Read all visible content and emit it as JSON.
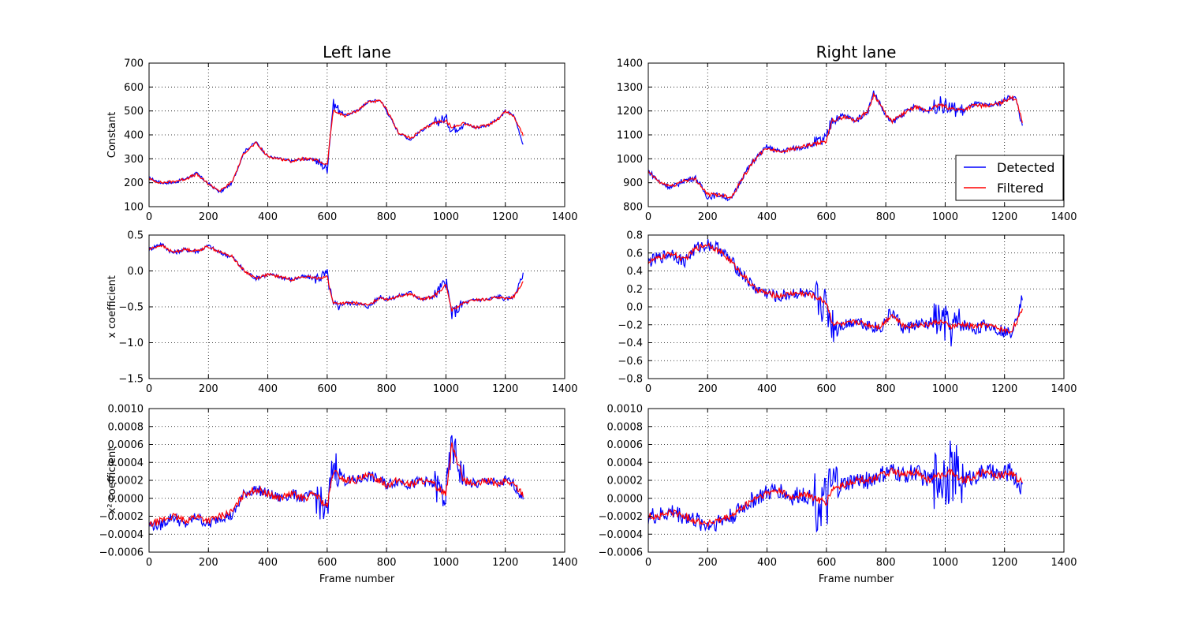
{
  "colors": {
    "detected": "#0000ff",
    "filtered": "#ff0000",
    "axes": "#000000",
    "grid": "#000000"
  },
  "legend": {
    "placement": "right",
    "items": [
      {
        "label": "Detected",
        "color": "#0000ff"
      },
      {
        "label": "Filtered",
        "color": "#ff0000"
      }
    ]
  },
  "chart_data": [
    {
      "id": "left-constant",
      "type": "line",
      "column": 0,
      "row": 0,
      "title": "Left lane",
      "xlabel": "",
      "ylabel": "Constant",
      "xlim": [
        0,
        1400
      ],
      "ylim": [
        100,
        700
      ],
      "xticks": [
        "0",
        "200",
        "400",
        "600",
        "800",
        "1000",
        "1200",
        "1400"
      ],
      "yticks": [
        "100",
        "200",
        "300",
        "400",
        "500",
        "600",
        "700"
      ],
      "grid": true,
      "legend": false,
      "noise": [
        6,
        6,
        10
      ],
      "x": [
        0,
        40,
        80,
        120,
        160,
        200,
        240,
        280,
        320,
        360,
        400,
        440,
        480,
        520,
        560,
        600,
        620,
        660,
        700,
        740,
        780,
        800,
        840,
        880,
        920,
        960,
        1000,
        1020,
        1060,
        1100,
        1140,
        1180,
        1200,
        1230,
        1260
      ],
      "series": [
        {
          "name": "Detected",
          "values": [
            220,
            200,
            200,
            215,
            240,
            195,
            160,
            200,
            330,
            370,
            310,
            300,
            290,
            300,
            295,
            260,
            530,
            480,
            500,
            540,
            545,
            500,
            410,
            380,
            420,
            450,
            470,
            420,
            450,
            430,
            440,
            470,
            500,
            480,
            360
          ]
        },
        {
          "name": "Filtered",
          "values": [
            215,
            200,
            205,
            215,
            235,
            195,
            165,
            205,
            325,
            365,
            310,
            300,
            290,
            300,
            295,
            275,
            500,
            480,
            500,
            540,
            540,
            505,
            410,
            385,
            420,
            450,
            460,
            430,
            450,
            430,
            440,
            470,
            500,
            475,
            400
          ]
        }
      ]
    },
    {
      "id": "left-x",
      "type": "line",
      "column": 0,
      "row": 1,
      "title": "",
      "xlabel": "",
      "ylabel": "x coefficient",
      "xlim": [
        0,
        1400
      ],
      "ylim": [
        -1.5,
        0.5
      ],
      "xticks": [
        "0",
        "200",
        "400",
        "600",
        "800",
        "1000",
        "1200",
        "1400"
      ],
      "yticks": [
        "−1.5",
        "−1.0",
        "−0.5",
        "0.0",
        "0.5"
      ],
      "grid": true,
      "legend": false,
      "noise": [
        0.02,
        0.03,
        0.04
      ],
      "x": [
        0,
        40,
        80,
        120,
        160,
        200,
        240,
        280,
        320,
        360,
        400,
        440,
        480,
        520,
        560,
        600,
        620,
        660,
        700,
        740,
        780,
        800,
        840,
        880,
        920,
        960,
        1000,
        1020,
        1060,
        1100,
        1140,
        1180,
        1200,
        1230,
        1260
      ],
      "series": [
        {
          "name": "Detected",
          "values": [
            0.3,
            0.38,
            0.25,
            0.3,
            0.27,
            0.35,
            0.25,
            0.2,
            0.0,
            -0.1,
            -0.05,
            -0.08,
            -0.12,
            -0.08,
            -0.1,
            -0.05,
            -0.5,
            -0.45,
            -0.45,
            -0.5,
            -0.35,
            -0.4,
            -0.35,
            -0.3,
            -0.4,
            -0.35,
            -0.15,
            -0.6,
            -0.45,
            -0.4,
            -0.4,
            -0.35,
            -0.4,
            -0.35,
            -0.05
          ]
        },
        {
          "name": "Filtered",
          "values": [
            0.3,
            0.36,
            0.26,
            0.3,
            0.28,
            0.34,
            0.26,
            0.2,
            0.0,
            -0.1,
            -0.05,
            -0.08,
            -0.12,
            -0.08,
            -0.1,
            -0.08,
            -0.45,
            -0.45,
            -0.45,
            -0.48,
            -0.36,
            -0.4,
            -0.35,
            -0.32,
            -0.4,
            -0.35,
            -0.2,
            -0.55,
            -0.45,
            -0.4,
            -0.4,
            -0.36,
            -0.4,
            -0.35,
            -0.15
          ]
        }
      ]
    },
    {
      "id": "left-x2",
      "type": "line",
      "column": 0,
      "row": 2,
      "title": "",
      "xlabel": "Frame number",
      "ylabel": "x² coefficient",
      "xlim": [
        0,
        1400
      ],
      "ylim": [
        -0.0006,
        0.001
      ],
      "xticks": [
        "0",
        "200",
        "400",
        "600",
        "800",
        "1000",
        "1200",
        "1400"
      ],
      "yticks": [
        "−0.0006",
        "−0.0004",
        "−0.0002",
        "0.0000",
        "0.0002",
        "0.0004",
        "0.0006",
        "0.0008",
        "0.0010"
      ],
      "grid": true,
      "legend": false,
      "noise": [
        4e-05,
        6e-05,
        9e-05
      ],
      "x": [
        0,
        40,
        80,
        120,
        160,
        200,
        240,
        280,
        320,
        360,
        400,
        440,
        480,
        520,
        560,
        600,
        620,
        660,
        700,
        740,
        780,
        800,
        840,
        880,
        920,
        960,
        1000,
        1020,
        1060,
        1100,
        1140,
        1180,
        1200,
        1230,
        1260
      ],
      "series": [
        {
          "name": "Detected",
          "values": [
            -0.0003,
            -0.0003,
            -0.0002,
            -0.0003,
            -0.0002,
            -0.0003,
            -0.0002,
            -0.0002,
            5e-05,
            0.0001,
            5e-05,
            0.0,
            5e-05,
            0.0,
            5e-05,
            -0.0002,
            0.0004,
            0.0002,
            0.0002,
            0.00025,
            0.0002,
            0.00015,
            0.0002,
            0.00015,
            0.0002,
            0.00015,
            0.0,
            0.0006,
            0.0002,
            0.00015,
            0.0002,
            0.00015,
            0.0002,
            0.00015,
            0.0
          ]
        },
        {
          "name": "Filtered",
          "values": [
            -0.0003,
            -0.00025,
            -0.0002,
            -0.00025,
            -0.0002,
            -0.00025,
            -0.0002,
            -0.00015,
            5e-05,
            0.0001,
            5e-05,
            0.0,
            5e-05,
            0.0,
            5e-05,
            -0.0001,
            0.0003,
            0.0002,
            0.0002,
            0.00025,
            0.0002,
            0.00015,
            0.0002,
            0.00015,
            0.0002,
            0.00015,
            5e-05,
            0.0006,
            0.0002,
            0.00015,
            0.0002,
            0.00015,
            0.0002,
            0.00015,
            5e-05
          ]
        }
      ]
    },
    {
      "id": "right-constant",
      "type": "line",
      "column": 1,
      "row": 0,
      "title": "Right lane",
      "xlabel": "",
      "ylabel": "",
      "xlim": [
        0,
        1400
      ],
      "ylim": [
        800,
        1400
      ],
      "xticks": [
        "0",
        "200",
        "400",
        "600",
        "800",
        "1000",
        "1200",
        "1400"
      ],
      "yticks": [
        "800",
        "900",
        "1000",
        "1100",
        "1200",
        "1300",
        "1400"
      ],
      "grid": true,
      "legend": true,
      "noise": [
        8,
        12,
        15
      ],
      "x": [
        0,
        40,
        80,
        120,
        160,
        200,
        240,
        280,
        320,
        360,
        400,
        440,
        480,
        520,
        560,
        600,
        620,
        660,
        700,
        740,
        760,
        780,
        800,
        820,
        860,
        900,
        940,
        980,
        1020,
        1060,
        1100,
        1140,
        1180,
        1220,
        1240,
        1260
      ],
      "series": [
        {
          "name": "Detected",
          "values": [
            950,
            900,
            880,
            910,
            920,
            840,
            850,
            830,
            930,
            1000,
            1050,
            1030,
            1040,
            1050,
            1060,
            1080,
            1170,
            1180,
            1160,
            1200,
            1280,
            1230,
            1180,
            1150,
            1190,
            1220,
            1200,
            1230,
            1210,
            1200,
            1230,
            1220,
            1230,
            1260,
            1250,
            1130
          ]
        },
        {
          "name": "Filtered",
          "values": [
            945,
            900,
            885,
            910,
            915,
            850,
            850,
            840,
            925,
            1000,
            1045,
            1030,
            1040,
            1050,
            1060,
            1075,
            1160,
            1175,
            1160,
            1200,
            1270,
            1230,
            1185,
            1155,
            1190,
            1215,
            1200,
            1225,
            1210,
            1205,
            1225,
            1220,
            1230,
            1255,
            1250,
            1150
          ]
        }
      ]
    },
    {
      "id": "right-x",
      "type": "line",
      "column": 1,
      "row": 1,
      "title": "",
      "xlabel": "",
      "ylabel": "",
      "xlim": [
        0,
        1400
      ],
      "ylim": [
        -0.8,
        0.8
      ],
      "xticks": [
        "0",
        "200",
        "400",
        "600",
        "800",
        "1000",
        "1200",
        "1400"
      ],
      "yticks": [
        "−0.8",
        "−0.6",
        "−0.4",
        "−0.2",
        "0.0",
        "0.2",
        "0.4",
        "0.6",
        "0.8"
      ],
      "grid": true,
      "legend": false,
      "noise": [
        0.03,
        0.07,
        0.1
      ],
      "x": [
        0,
        40,
        80,
        120,
        160,
        200,
        240,
        280,
        320,
        360,
        400,
        440,
        480,
        520,
        560,
        600,
        620,
        660,
        700,
        740,
        780,
        800,
        820,
        860,
        900,
        940,
        980,
        1020,
        1060,
        1100,
        1140,
        1180,
        1220,
        1260
      ],
      "series": [
        {
          "name": "Detected",
          "values": [
            0.5,
            0.55,
            0.6,
            0.5,
            0.65,
            0.7,
            0.65,
            0.5,
            0.35,
            0.2,
            0.15,
            0.1,
            0.15,
            0.15,
            0.1,
            0.0,
            -0.2,
            -0.2,
            -0.15,
            -0.2,
            -0.25,
            -0.15,
            -0.05,
            -0.25,
            -0.2,
            -0.2,
            -0.15,
            -0.25,
            -0.2,
            -0.25,
            -0.2,
            -0.25,
            -0.3,
            0.1
          ]
        },
        {
          "name": "Filtered",
          "values": [
            0.5,
            0.55,
            0.6,
            0.52,
            0.65,
            0.7,
            0.62,
            0.5,
            0.35,
            0.2,
            0.15,
            0.12,
            0.15,
            0.15,
            0.12,
            0.05,
            -0.18,
            -0.2,
            -0.16,
            -0.2,
            -0.22,
            -0.16,
            -0.08,
            -0.22,
            -0.2,
            -0.2,
            -0.16,
            -0.22,
            -0.2,
            -0.22,
            -0.2,
            -0.24,
            -0.28,
            -0.05
          ]
        }
      ]
    },
    {
      "id": "right-x2",
      "type": "line",
      "column": 1,
      "row": 2,
      "title": "",
      "xlabel": "Frame number",
      "ylabel": "",
      "xlim": [
        0,
        1400
      ],
      "ylim": [
        -0.0006,
        0.001
      ],
      "xticks": [
        "0",
        "200",
        "400",
        "600",
        "800",
        "1000",
        "1200",
        "1400"
      ],
      "yticks": [
        "−0.0006",
        "−0.0004",
        "−0.0002",
        "0.0000",
        "0.0002",
        "0.0004",
        "0.0006",
        "0.0008",
        "0.0010"
      ],
      "grid": true,
      "legend": false,
      "noise": [
        4e-05,
        0.0001,
        0.00016
      ],
      "x": [
        0,
        40,
        80,
        120,
        160,
        200,
        240,
        280,
        320,
        360,
        400,
        440,
        480,
        520,
        560,
        600,
        620,
        660,
        700,
        740,
        780,
        820,
        860,
        900,
        940,
        980,
        1020,
        1060,
        1100,
        1140,
        1180,
        1220,
        1260
      ],
      "series": [
        {
          "name": "Detected",
          "values": [
            -0.0002,
            -0.0002,
            -0.00015,
            -0.0002,
            -0.00025,
            -0.0003,
            -0.00025,
            -0.0002,
            -0.0001,
            0.0,
            5e-05,
            0.0001,
            0.0,
            5e-05,
            0.0,
            -0.0001,
            0.0001,
            0.00015,
            0.0002,
            0.0002,
            0.00025,
            0.0003,
            0.00025,
            0.0003,
            0.0002,
            0.00025,
            0.0003,
            0.0002,
            0.00025,
            0.0003,
            0.00025,
            0.0003,
            0.0001
          ]
        },
        {
          "name": "Filtered",
          "values": [
            -0.0002,
            -0.0002,
            -0.00015,
            -0.0002,
            -0.00025,
            -0.00028,
            -0.00025,
            -0.0002,
            -0.0001,
            0.0,
            5e-05,
            0.0001,
            0.0,
            5e-05,
            0.0,
            -5e-05,
            0.0001,
            0.00015,
            0.0002,
            0.0002,
            0.00025,
            0.0003,
            0.00025,
            0.0003,
            0.0002,
            0.00025,
            0.0003,
            0.0002,
            0.00025,
            0.0003,
            0.00025,
            0.00028,
            0.00018
          ]
        }
      ]
    }
  ]
}
